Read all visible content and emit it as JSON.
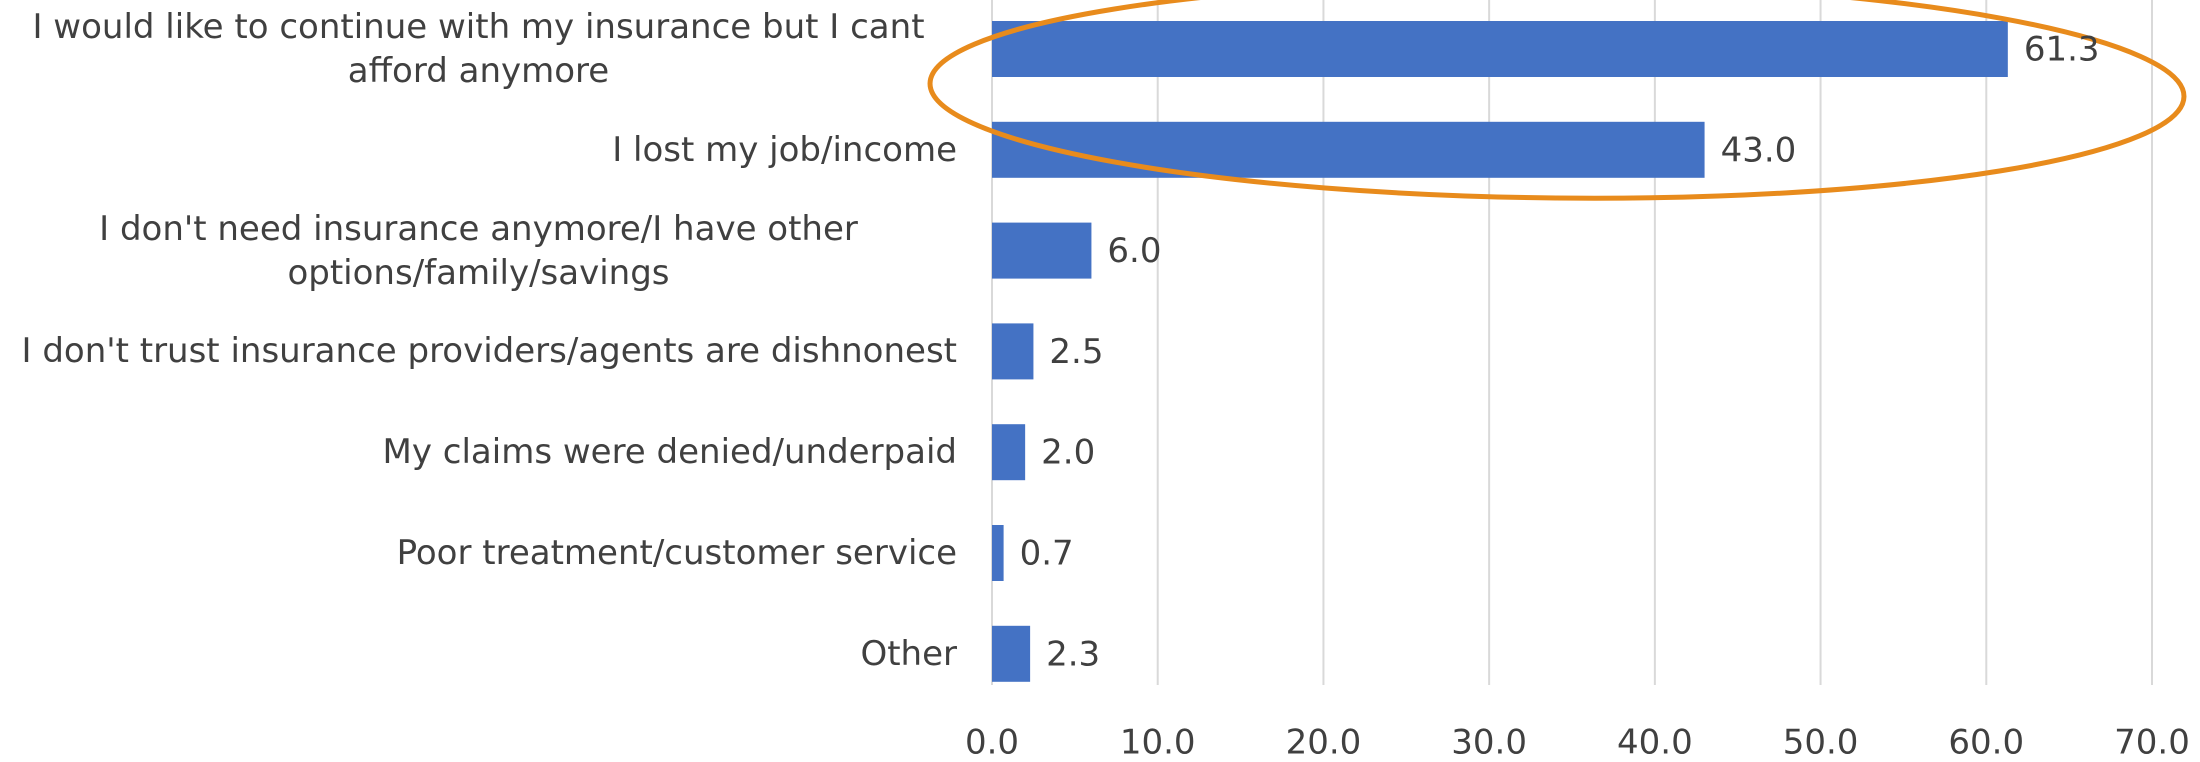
{
  "chart_data": {
    "type": "bar",
    "orientation": "horizontal",
    "categories": [
      "I would like to continue with my insurance but I cant afford anymore",
      "I lost my job/income",
      "I don't need insurance anymore/I have other options/family/savings",
      "I don't trust insurance providers/agents are dishnonest",
      "My claims were denied/underpaid",
      "Poor treatment/customer service",
      "Other"
    ],
    "values": [
      61.3,
      43.0,
      6.0,
      2.5,
      2.0,
      0.7,
      2.3
    ],
    "value_labels": [
      "61.3",
      "43.0",
      "6.0",
      "2.5",
      "2.0",
      "0.7",
      "2.3"
    ],
    "color": "#4472c4",
    "xlim": [
      0,
      70
    ],
    "xticks": [
      {
        "value": 0,
        "label": "0.0"
      },
      {
        "value": 10,
        "label": "10.0"
      },
      {
        "value": 20,
        "label": "20.0"
      },
      {
        "value": 30,
        "label": "30.0"
      },
      {
        "value": 40,
        "label": "40.0"
      },
      {
        "value": 50,
        "label": "50.0"
      },
      {
        "value": 60,
        "label": "60.0"
      },
      {
        "value": 70,
        "label": "70.0"
      }
    ],
    "grid": true
  }
}
